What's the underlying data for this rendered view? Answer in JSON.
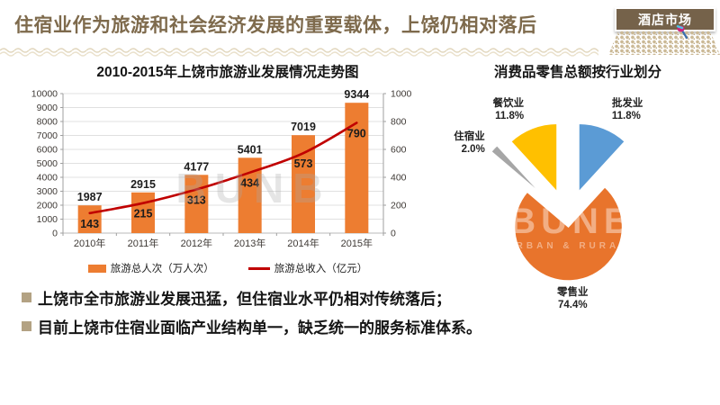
{
  "header": {
    "title": "住宿业作为旅游和社会经济发展的重要载体，上饶仍相对落后",
    "badge": "酒店市场",
    "title_color": "#7E6A4C",
    "badge_bg": "#75624A"
  },
  "watermark": {
    "brand": "BUNB",
    "tagline": "RBAN & RURAL"
  },
  "chart_data": [
    {
      "type": "bar",
      "subtype": "bar+line combo",
      "title": "2010-2015年上饶市旅游业发展情况走势图",
      "categories": [
        "2010年",
        "2011年",
        "2012年",
        "2013年",
        "2014年",
        "2015年"
      ],
      "series": [
        {
          "name": "旅游总人次（万人次）",
          "kind": "bar",
          "axis": "left",
          "color": "#ED7D31",
          "values": [
            1987,
            2915,
            4177,
            5401,
            7019,
            9344
          ]
        },
        {
          "name": "旅游总收入（亿元）",
          "kind": "line",
          "axis": "right",
          "color": "#C00000",
          "values": [
            143,
            215,
            313,
            434,
            573,
            790
          ]
        }
      ],
      "left_axis": {
        "min": 0,
        "max": 10000,
        "step": 1000
      },
      "right_axis": {
        "min": 0,
        "max": 1000,
        "step": 200
      },
      "grid": true,
      "legend_position": "bottom",
      "axis_label_color": "#3F3A36",
      "data_label_color": "#1c1c1c"
    },
    {
      "type": "pie",
      "title": "消费品零售总额按行业划分",
      "exploded": true,
      "direction": "clockwise",
      "start_angle_deg": 0,
      "slices": [
        {
          "label": "批发业",
          "value": 11.8,
          "color": "#5B9BD5"
        },
        {
          "label": "零售业",
          "value": 74.4,
          "color": "#E8742C"
        },
        {
          "label": "住宿业",
          "value": 2.0,
          "color": "#A6A6A6"
        },
        {
          "label": "餐饮业",
          "value": 11.8,
          "color": "#FFC000"
        }
      ]
    }
  ],
  "bullets": [
    {
      "text": "上饶市全市旅游业发展迅猛，但住宿业水平仍相对传统落后；"
    },
    {
      "text": "目前上饶市住宿业面临产业结构单一，缺乏统一的服务标准体系。"
    }
  ]
}
